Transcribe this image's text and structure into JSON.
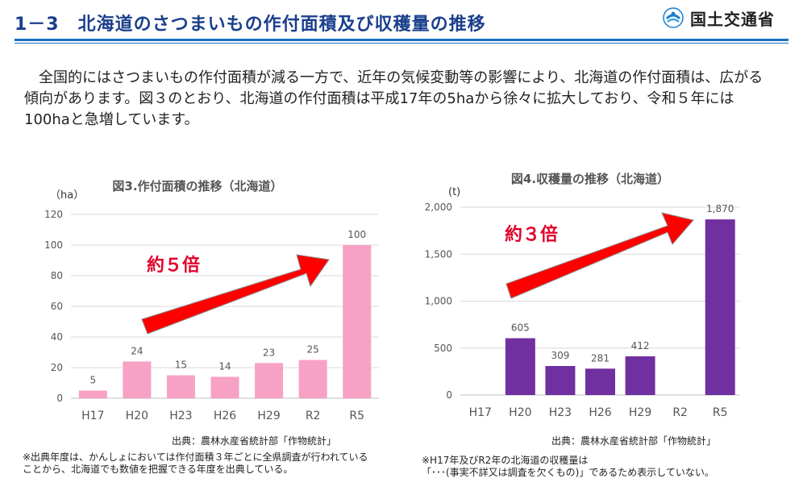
{
  "header": {
    "title": "1－3　北海道のさつまいもの作付面積及び収穫量の推移",
    "logo_text": "国土交通省",
    "logo_icon": "ministry-logo-icon",
    "colors": {
      "title": "#1a3f8c",
      "rule": "#1a6fc2"
    }
  },
  "intro": {
    "text": "全国的にはさつまいもの作付面積が減る一方で、近年の気候変動等の影響により、北海道の作付面積は、広がる傾向があります。図３のとおり、北海道の作付面積は平成17年の5haから徐々に拡大しており、令和５年には100haと急増しています。"
  },
  "chart_data": [
    {
      "type": "bar",
      "title": "図3.作付面積の推移（北海道）",
      "ylabel": "（ha）",
      "categories": [
        "H17",
        "H20",
        "H23",
        "H26",
        "H29",
        "R2",
        "R5"
      ],
      "values": [
        5,
        24,
        15,
        14,
        23,
        25,
        100
      ],
      "data_labels": [
        "5",
        "24",
        "15",
        "14",
        "23",
        "25",
        "100"
      ],
      "ylim": [
        0,
        120
      ],
      "yticks": [
        0,
        20,
        40,
        60,
        80,
        100,
        120
      ],
      "ytick_labels": [
        "0",
        "20",
        "40",
        "60",
        "80",
        "100",
        "120"
      ],
      "grid": true,
      "color": "#f7a1c4",
      "annotation": "約５倍",
      "source": "出典：農林水産省統計部「作物統計」",
      "note": "※出典年度は、かんしょにおいては作付面積３年ごとに全県調査が行われていることから、北海道でも数値を把握できる年度を出典している。"
    },
    {
      "type": "bar",
      "title": "図4.収穫量の推移（北海道）",
      "ylabel": "(t)",
      "categories": [
        "H17",
        "H20",
        "H23",
        "H26",
        "H29",
        "R2",
        "R5"
      ],
      "values": [
        null,
        605,
        309,
        281,
        412,
        null,
        1870
      ],
      "data_labels": [
        "",
        "605",
        "309",
        "281",
        "412",
        "",
        "1,870"
      ],
      "ylim": [
        0,
        2000
      ],
      "yticks": [
        0,
        500,
        1000,
        1500,
        2000
      ],
      "ytick_labels": [
        "0",
        "500",
        "1,000",
        "1,500",
        "2,000"
      ],
      "grid": true,
      "color": "#7030a0",
      "annotation": "約３倍",
      "source": "出典：農林水産省統計部「作物統計」",
      "note_line1": "※H17年及びR2年の北海道の収穫量は",
      "note_line2": "「･･･(事実不詳又は調査を欠くもの)」であるため表示していない。"
    }
  ]
}
